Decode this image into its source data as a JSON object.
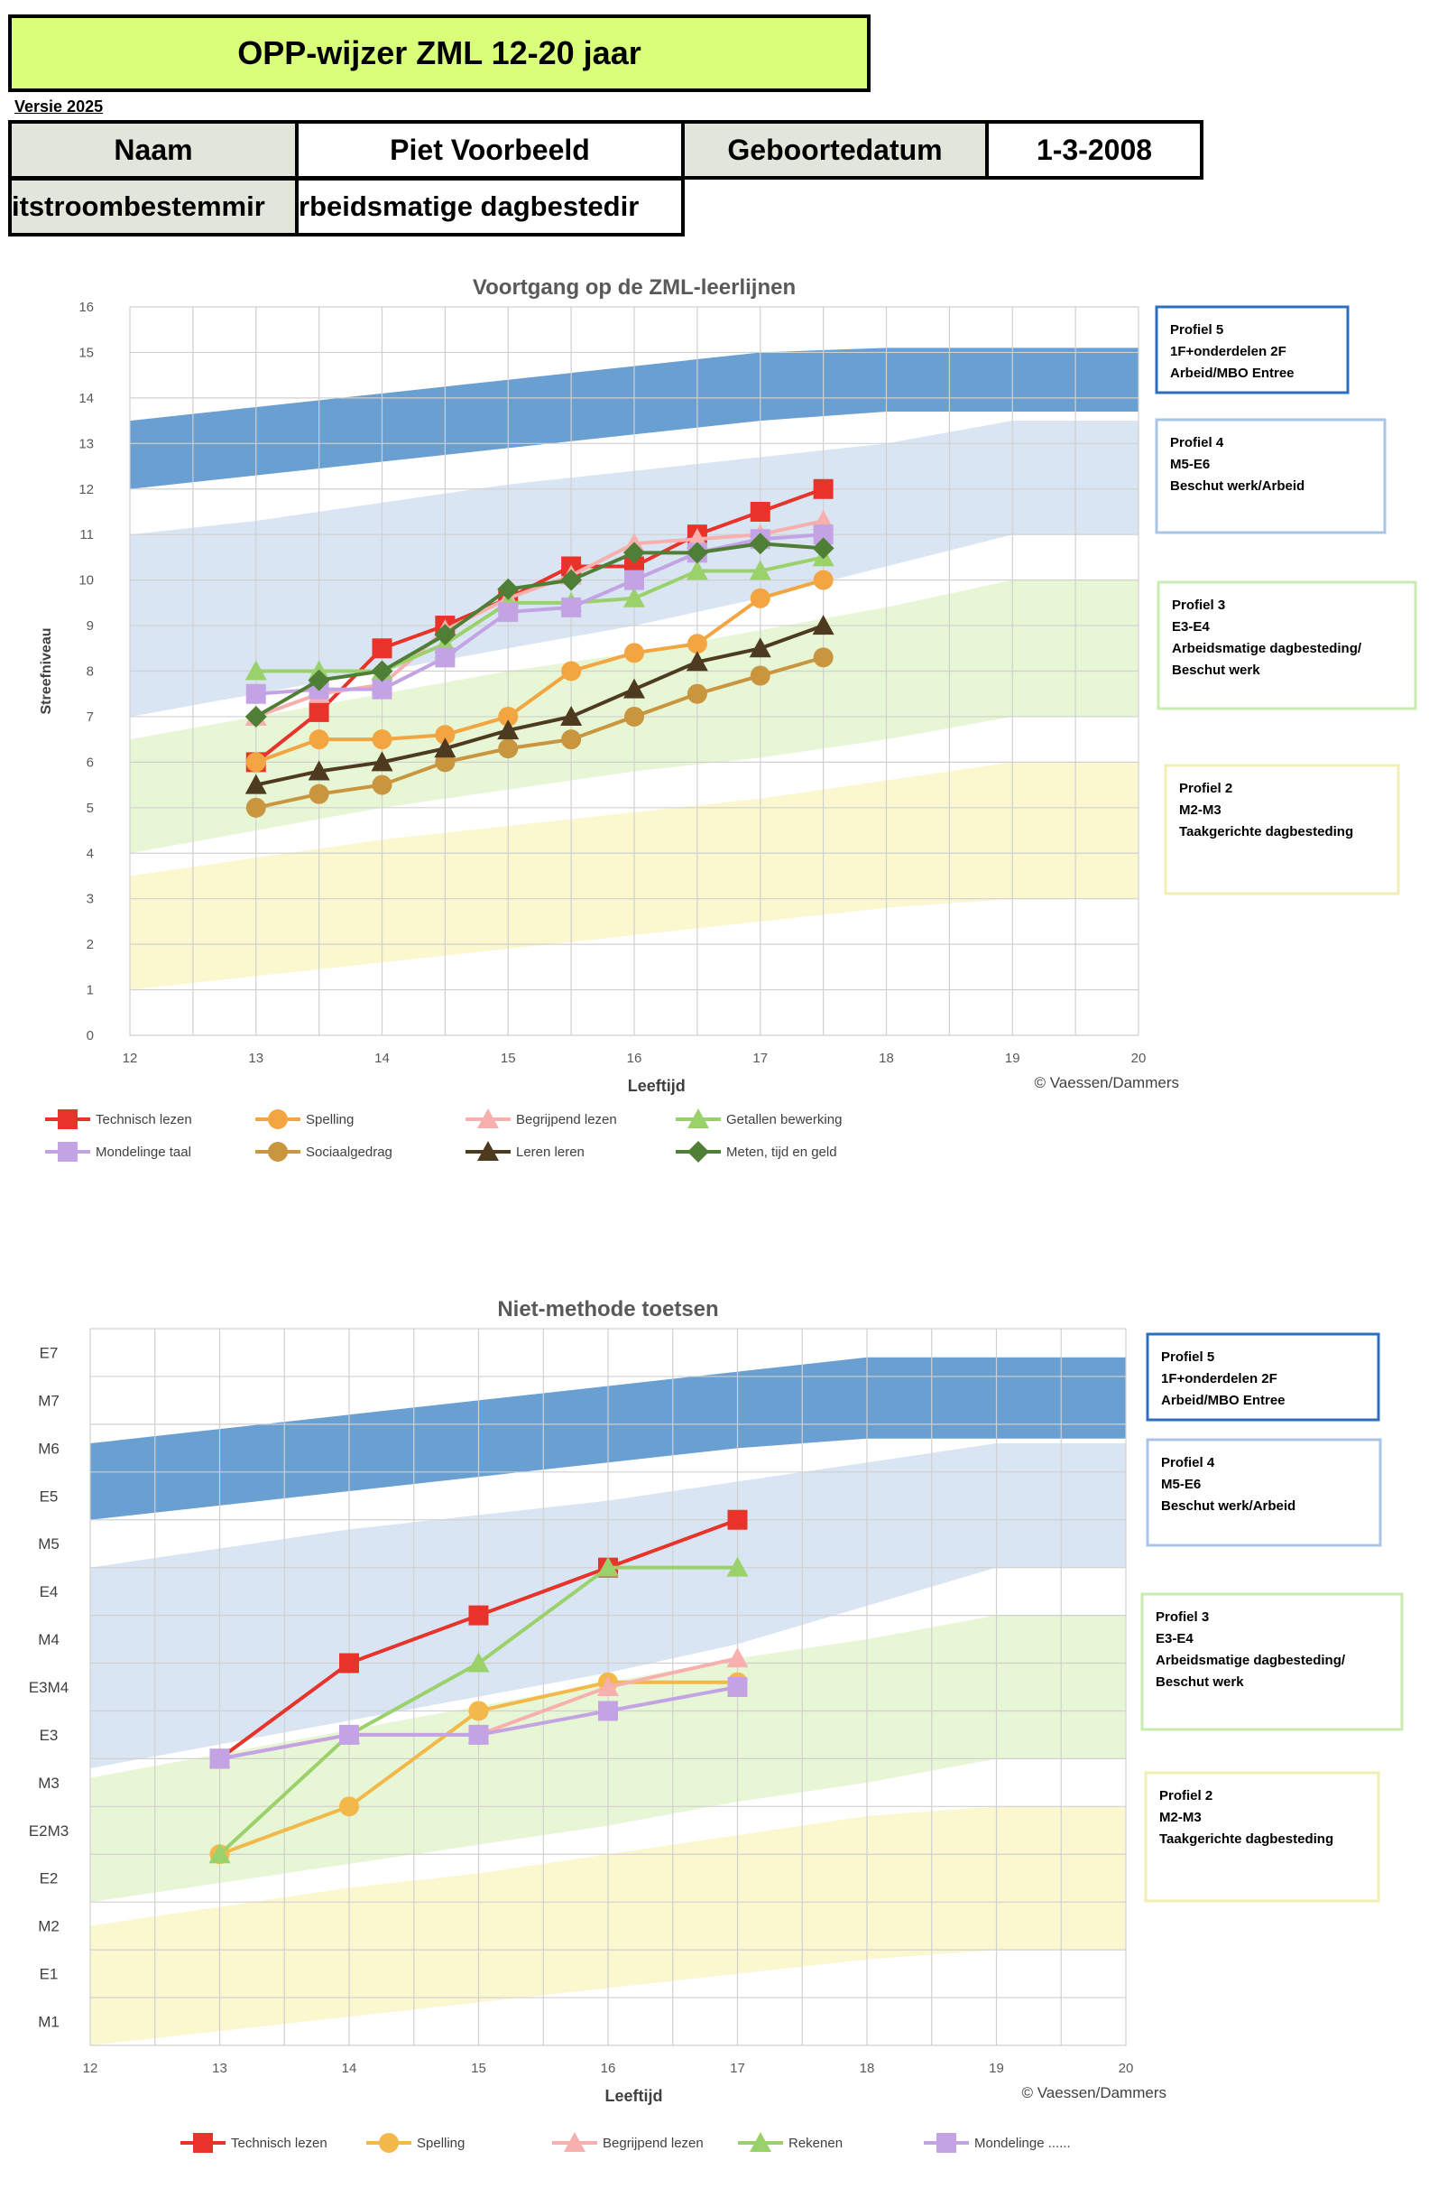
{
  "header": {
    "title": "OPP-wijzer ZML  12-20 jaar",
    "version": "Versie 2025",
    "name_label": "Naam",
    "name_value": "Piet Voorbeeld",
    "dob_label": "Geboortedatum",
    "dob_value": "1-3-2008",
    "outflow_label": "itstroombestemmir",
    "outflow_value": "rbeidsmatige dagbestedir"
  },
  "colors": {
    "band5": "#6a9fd2",
    "band4": "#d9e5f3",
    "band3": "#e7f6d4",
    "band2": "#fbf7cf",
    "grid": "#d0d0d0"
  },
  "chart_data": [
    {
      "type": "line",
      "title": "Voortgang op de ZML-leerlijnen",
      "xlabel": "Leeftijd",
      "ylabel": "Streefniveau",
      "credit": "© Vaessen/Dammers",
      "xlim": [
        12,
        20
      ],
      "ylim": [
        0,
        16
      ],
      "x_ticks": [
        12,
        13,
        14,
        15,
        16,
        17,
        18,
        19,
        20
      ],
      "y_ticks": [
        0,
        1,
        2,
        3,
        4,
        5,
        6,
        7,
        8,
        9,
        10,
        11,
        12,
        13,
        14,
        15,
        16
      ],
      "grid": true,
      "bands": [
        {
          "x": [
            12,
            13,
            14,
            15,
            16,
            17,
            18,
            20
          ],
          "low": [
            12,
            12.3,
            12.6,
            12.9,
            13.2,
            13.5,
            13.7,
            13.7
          ],
          "high": [
            13.5,
            13.8,
            14.1,
            14.4,
            14.7,
            15,
            15.1,
            15.1
          ],
          "color": "band5"
        },
        {
          "x": [
            12,
            13,
            14,
            15,
            16,
            17,
            18,
            19,
            20
          ],
          "low": [
            7,
            7.5,
            8,
            8.5,
            9,
            9.6,
            10.3,
            11,
            11
          ],
          "high": [
            11,
            11.3,
            11.7,
            12.1,
            12.4,
            12.7,
            13,
            13.5,
            13.5
          ],
          "color": "band4"
        },
        {
          "x": [
            12,
            13,
            14,
            15,
            16,
            17,
            18,
            19,
            20
          ],
          "low": [
            4,
            4.5,
            5,
            5.4,
            5.8,
            6.1,
            6.5,
            7,
            7
          ],
          "high": [
            6.5,
            7,
            7.5,
            8,
            8.4,
            8.9,
            9.4,
            10,
            10
          ],
          "color": "band3"
        },
        {
          "x": [
            12,
            13,
            14,
            15,
            16,
            17,
            18,
            19,
            20
          ],
          "low": [
            1,
            1.3,
            1.6,
            1.9,
            2.2,
            2.5,
            2.8,
            3,
            3
          ],
          "high": [
            3.5,
            3.9,
            4.3,
            4.6,
            4.9,
            5.2,
            5.6,
            6,
            6
          ],
          "color": "band2"
        }
      ],
      "profiles": [
        {
          "lines": [
            "Profiel 5",
            "1F+onderdelen 2F",
            "Arbeid/MBO Entree"
          ],
          "border": "#2e6fbf"
        },
        {
          "lines": [
            "Profiel 4",
            "M5-E6",
            "Beschut werk/Arbeid"
          ],
          "border": "#a8c4e6"
        },
        {
          "lines": [
            "Profiel 3",
            "E3-E4",
            "Arbeidsmatige dagbesteding/",
            "Beschut werk"
          ],
          "border": "#c9ebb0"
        },
        {
          "lines": [
            "Profiel 2",
            "M2-M3",
            "Taakgerichte dagbesteding"
          ],
          "border": "#f2efb5"
        }
      ],
      "x": [
        13,
        13.5,
        14,
        14.5,
        15,
        15.5,
        16,
        16.5,
        17,
        17.5
      ],
      "series": [
        {
          "name": "Technisch lezen",
          "color": "#e8332a",
          "marker": "square",
          "values": [
            6,
            7.1,
            8.5,
            9,
            9.6,
            10.3,
            10.3,
            11,
            11.5,
            12
          ]
        },
        {
          "name": "Spelling",
          "color": "#f2a541",
          "marker": "circle",
          "values": [
            6,
            6.5,
            6.5,
            6.6,
            7,
            8,
            8.4,
            8.6,
            9.6,
            10
          ]
        },
        {
          "name": "Begrijpend lezen",
          "color": "#f7b0ae",
          "marker": "triangle",
          "values": [
            7,
            7.5,
            7.7,
            8.9,
            9.6,
            10.1,
            10.8,
            10.9,
            11,
            11.3
          ]
        },
        {
          "name": "Getallen bewerking",
          "color": "#9bd16a",
          "marker": "triangle",
          "values": [
            8,
            8,
            8,
            8.6,
            9.5,
            9.5,
            9.6,
            10.2,
            10.2,
            10.5
          ]
        },
        {
          "name": "Mondelinge taal",
          "color": "#c3a3e3",
          "marker": "square",
          "values": [
            7.5,
            7.6,
            7.6,
            8.3,
            9.3,
            9.4,
            10,
            10.6,
            10.9,
            11
          ]
        },
        {
          "name": "Sociaalgedrag",
          "color": "#c9953f",
          "marker": "circle",
          "values": [
            5,
            5.3,
            5.5,
            6,
            6.3,
            6.5,
            7,
            7.5,
            7.9,
            8.3
          ]
        },
        {
          "name": "Leren leren",
          "color": "#4d3a1f",
          "marker": "triangle",
          "values": [
            5.5,
            5.8,
            6,
            6.3,
            6.7,
            7,
            7.6,
            8.2,
            8.5,
            9
          ]
        },
        {
          "name": "Meten, tijd en geld",
          "color": "#4f7f36",
          "marker": "diamond",
          "values": [
            7,
            7.8,
            8,
            8.8,
            9.8,
            10,
            10.6,
            10.6,
            10.8,
            10.7
          ]
        }
      ]
    },
    {
      "type": "line",
      "title": "Niet-methode toetsen",
      "xlabel": "Leeftijd",
      "credit": "© Vaessen/Dammers",
      "xlim": [
        12,
        20
      ],
      "x_ticks": [
        12,
        13,
        14,
        15,
        16,
        17,
        18,
        19,
        20
      ],
      "y_categories": [
        "M1",
        "E1",
        "M2",
        "E2",
        "E2M3",
        "M3",
        "E3",
        "E3M4",
        "M4",
        "E4",
        "M5",
        "E5",
        "M6",
        "M7",
        "E7"
      ],
      "grid": true,
      "bands": [
        {
          "x": [
            12,
            13,
            14,
            15,
            16,
            17,
            18,
            20
          ],
          "low": [
            11,
            11.3,
            11.6,
            11.9,
            12.2,
            12.5,
            12.7,
            12.7
          ],
          "high": [
            12.6,
            12.9,
            13.2,
            13.5,
            13.8,
            14.1,
            14.4,
            14.4
          ],
          "color": "band5"
        },
        {
          "x": [
            12,
            13,
            14,
            15,
            16,
            17,
            18,
            19,
            20
          ],
          "low": [
            5.8,
            6.3,
            6.8,
            7.3,
            7.8,
            8.4,
            9.2,
            10,
            10
          ],
          "high": [
            10,
            10.4,
            10.8,
            11.1,
            11.4,
            11.8,
            12.2,
            12.6,
            12.6
          ],
          "color": "band4"
        },
        {
          "x": [
            12,
            13,
            14,
            15,
            16,
            17,
            18,
            19,
            20
          ],
          "low": [
            3,
            3.4,
            3.8,
            4.2,
            4.6,
            5.1,
            5.5,
            6,
            6
          ],
          "high": [
            5.6,
            6.1,
            6.6,
            7.1,
            7.6,
            8.1,
            8.5,
            9,
            9
          ],
          "color": "band3"
        },
        {
          "x": [
            12,
            13,
            14,
            15,
            16,
            17,
            18,
            19,
            20
          ],
          "low": [
            0,
            0.3,
            0.6,
            0.9,
            1.2,
            1.5,
            1.8,
            2,
            2
          ],
          "high": [
            2.5,
            2.9,
            3.3,
            3.6,
            4,
            4.4,
            4.8,
            5,
            5
          ],
          "color": "band2"
        }
      ],
      "profiles": [
        {
          "lines": [
            "Profiel 5",
            "1F+onderdelen 2F",
            "Arbeid/MBO Entree"
          ],
          "border": "#2e6fbf"
        },
        {
          "lines": [
            "Profiel 4",
            "M5-E6",
            "Beschut werk/Arbeid"
          ],
          "border": "#a8c4e6"
        },
        {
          "lines": [
            "Profiel 3",
            "E3-E4",
            "Arbeidsmatige dagbesteding/",
            "Beschut werk"
          ],
          "border": "#c9ebb0"
        },
        {
          "lines": [
            "Profiel 2",
            "M2-M3",
            "Taakgerichte dagbesteding"
          ],
          "border": "#f2efb5"
        }
      ],
      "x": [
        13,
        14,
        15,
        16,
        17
      ],
      "series": [
        {
          "name": "Technisch lezen",
          "color": "#e8332a",
          "marker": "square",
          "values": [
            6,
            8,
            9,
            10,
            11
          ]
        },
        {
          "name": "Spelling",
          "color": "#f2b84a",
          "marker": "circle",
          "values": [
            4,
            5,
            7,
            7.6,
            7.6
          ]
        },
        {
          "name": "Begrijpend lezen",
          "color": "#f7b0ae",
          "marker": "triangle",
          "values": [
            6,
            6.5,
            6.5,
            7.5,
            8.1
          ]
        },
        {
          "name": "Rekenen",
          "color": "#9bd16a",
          "marker": "triangle",
          "values": [
            4,
            6.5,
            8,
            10,
            10
          ]
        },
        {
          "name": "Mondelinge ......",
          "color": "#c3a3e3",
          "marker": "square",
          "values": [
            6,
            6.5,
            6.5,
            7,
            7.5
          ]
        }
      ]
    }
  ]
}
